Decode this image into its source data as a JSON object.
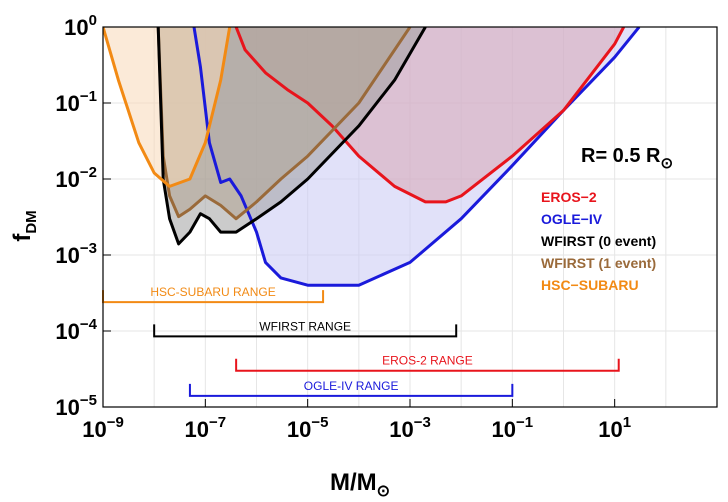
{
  "chart_data": {
    "type": "line",
    "xscale": "log",
    "yscale": "log",
    "xlim": [
      1e-09,
      1000
    ],
    "ylim": [
      1e-05,
      1
    ],
    "grid": true,
    "xlabel_main": "M/M",
    "xlabel_sub": "⊙",
    "ylabel_main": "f",
    "ylabel_sub": "DM",
    "annotation": {
      "main": "R= 0.5 R",
      "sub": "⊙"
    },
    "x_ticks": [
      {
        "value": 1e-09,
        "base": "10",
        "exp": "−9"
      },
      {
        "value": 1e-07,
        "base": "10",
        "exp": "−7"
      },
      {
        "value": 1e-05,
        "base": "10",
        "exp": "−5"
      },
      {
        "value": 0.001,
        "base": "10",
        "exp": "−3"
      },
      {
        "value": 0.1,
        "base": "10",
        "exp": "−1"
      },
      {
        "value": 10,
        "base": "10",
        "exp": "1"
      }
    ],
    "y_ticks": [
      {
        "value": 1,
        "base": "10",
        "exp": "0"
      },
      {
        "value": 0.1,
        "base": "10",
        "exp": "−1"
      },
      {
        "value": 0.01,
        "base": "10",
        "exp": "−2"
      },
      {
        "value": 0.001,
        "base": "10",
        "exp": "−3"
      },
      {
        "value": 0.0001,
        "base": "10",
        "exp": "−4"
      },
      {
        "value": 1e-05,
        "base": "10",
        "exp": "−5"
      }
    ],
    "legend_position": "right",
    "series": [
      {
        "name": "EROS−2",
        "color": "#e8141c",
        "fill": "#d9a8b4",
        "points": [
          [
            4e-07,
            1
          ],
          [
            6e-07,
            0.5
          ],
          [
            1.5e-06,
            0.25
          ],
          [
            4e-06,
            0.15
          ],
          [
            1e-05,
            0.1
          ],
          [
            3e-05,
            0.05
          ],
          [
            0.0001,
            0.02
          ],
          [
            0.0005,
            0.008
          ],
          [
            0.002,
            0.005
          ],
          [
            0.005,
            0.005
          ],
          [
            0.01,
            0.006
          ],
          [
            0.1,
            0.02
          ],
          [
            1,
            0.08
          ],
          [
            10,
            0.6
          ],
          [
            15,
            1
          ]
        ]
      },
      {
        "name": "OGLE−IV",
        "color": "#1a1adb",
        "fill": "#c8c8f4",
        "points": [
          [
            6e-08,
            1
          ],
          [
            8e-08,
            0.3
          ],
          [
            1.2e-07,
            0.03
          ],
          [
            2e-07,
            0.009
          ],
          [
            3e-07,
            0.01
          ],
          [
            5e-07,
            0.006
          ],
          [
            1e-06,
            0.002
          ],
          [
            1.5e-06,
            0.0008
          ],
          [
            3e-06,
            0.0005
          ],
          [
            1e-05,
            0.0004
          ],
          [
            3e-05,
            0.0004
          ],
          [
            0.0001,
            0.0004
          ],
          [
            0.001,
            0.0008
          ],
          [
            0.01,
            0.003
          ],
          [
            0.1,
            0.015
          ],
          [
            1,
            0.08
          ],
          [
            10,
            0.4
          ],
          [
            30,
            1
          ]
        ]
      },
      {
        "name": "WFIRST (0 event)",
        "color": "#000000",
        "fill": "#a0a0a0",
        "points": [
          [
            1.2e-08,
            1
          ],
          [
            1.5e-08,
            0.01
          ],
          [
            2e-08,
            0.003
          ],
          [
            3e-08,
            0.0014
          ],
          [
            5e-08,
            0.002
          ],
          [
            8e-08,
            0.0035
          ],
          [
            1.2e-07,
            0.003
          ],
          [
            2e-07,
            0.002
          ],
          [
            4e-07,
            0.002
          ],
          [
            1e-06,
            0.003
          ],
          [
            3e-06,
            0.005
          ],
          [
            1e-05,
            0.01
          ],
          [
            0.0001,
            0.05
          ],
          [
            0.0005,
            0.2
          ],
          [
            0.002,
            1
          ]
        ]
      },
      {
        "name": "WFIRST (1 event)",
        "color": "#9a6a3a",
        "fill": "#c4a882",
        "points": [
          [
            1.2e-08,
            1
          ],
          [
            1.5e-08,
            0.02
          ],
          [
            2e-08,
            0.006
          ],
          [
            3e-08,
            0.0032
          ],
          [
            5e-08,
            0.004
          ],
          [
            1e-07,
            0.006
          ],
          [
            2e-07,
            0.0045
          ],
          [
            4e-07,
            0.003
          ],
          [
            1e-06,
            0.005
          ],
          [
            3e-06,
            0.01
          ],
          [
            1e-05,
            0.02
          ],
          [
            0.0001,
            0.1
          ],
          [
            0.0005,
            0.5
          ],
          [
            0.001,
            1
          ]
        ]
      },
      {
        "name": "HSC−SUBARU",
        "color": "#f28a14",
        "fill": "#f7d8b8",
        "points": [
          [
            1e-09,
            1
          ],
          [
            2e-09,
            0.2
          ],
          [
            5e-09,
            0.03
          ],
          [
            1e-08,
            0.012
          ],
          [
            2e-08,
            0.008
          ],
          [
            5e-08,
            0.01
          ],
          [
            1e-07,
            0.03
          ],
          [
            2e-07,
            0.2
          ],
          [
            3e-07,
            1
          ]
        ]
      }
    ],
    "ranges": [
      {
        "label": "HSC-SUBARU RANGE",
        "color": "#f28a14",
        "x": [
          1e-09,
          2e-05
        ],
        "y": 0.00024
      },
      {
        "label": "WFIRST RANGE",
        "color": "#000000",
        "x": [
          1e-08,
          0.008
        ],
        "y": 8.5e-05
      },
      {
        "label": "EROS-2 RANGE",
        "color": "#e8141c",
        "x": [
          4e-07,
          12
        ],
        "y": 3e-05
      },
      {
        "label": "OGLE-IV RANGE",
        "color": "#1a1adb",
        "x": [
          5e-08,
          0.1
        ],
        "y": 1.4e-05
      }
    ]
  }
}
